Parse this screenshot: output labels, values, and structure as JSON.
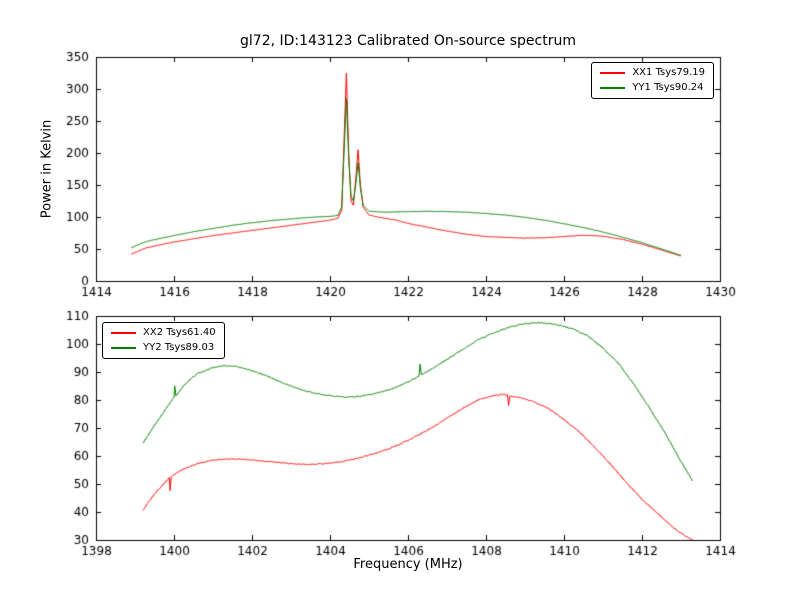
{
  "figure": {
    "title": "gl72, ID:143123 Calibrated On-source spectrum",
    "xlabel": "Frequency (MHz)",
    "ylabel": "Power in Kelvin"
  },
  "chart_data": [
    {
      "type": "line",
      "title": "gl72, ID:143123 Calibrated On-source spectrum",
      "ylabel": "Power in Kelvin",
      "xlim": [
        1414,
        1430
      ],
      "ylim": [
        0,
        350
      ],
      "xticks": [
        1414,
        1416,
        1418,
        1420,
        1422,
        1424,
        1426,
        1428,
        1430
      ],
      "yticks": [
        0,
        50,
        100,
        150,
        200,
        250,
        300,
        350
      ],
      "grid": false,
      "legend_position": "upper right",
      "noise": 0.6,
      "series": [
        {
          "name": "XX1 Tsys79.19",
          "color": "#ff0000",
          "points": [
            [
              1414.9,
              42
            ],
            [
              1415.3,
              52
            ],
            [
              1416,
              61
            ],
            [
              1416.5,
              66
            ],
            [
              1417,
              71
            ],
            [
              1417.5,
              75
            ],
            [
              1418,
              79
            ],
            [
              1418.5,
              83
            ],
            [
              1419,
              87
            ],
            [
              1419.5,
              91
            ],
            [
              1420.0,
              95
            ],
            [
              1420.2,
              98
            ],
            [
              1420.3,
              110
            ],
            [
              1420.36,
              220
            ],
            [
              1420.42,
              325
            ],
            [
              1420.48,
              200
            ],
            [
              1420.54,
              125
            ],
            [
              1420.6,
              118
            ],
            [
              1420.66,
              160
            ],
            [
              1420.72,
              205
            ],
            [
              1420.78,
              150
            ],
            [
              1420.85,
              115
            ],
            [
              1421,
              103
            ],
            [
              1421.3,
              99
            ],
            [
              1421.7,
              95
            ],
            [
              1422,
              90
            ],
            [
              1422.5,
              84
            ],
            [
              1423,
              78
            ],
            [
              1423.5,
              73
            ],
            [
              1424,
              69.5
            ],
            [
              1424.5,
              68
            ],
            [
              1425,
              67
            ],
            [
              1425.5,
              67.5
            ],
            [
              1426,
              69.5
            ],
            [
              1426.5,
              71.5
            ],
            [
              1427,
              70
            ],
            [
              1427.5,
              65
            ],
            [
              1428,
              57.5
            ],
            [
              1428.5,
              48.5
            ],
            [
              1429,
              39
            ]
          ]
        },
        {
          "name": "YY1 Tsys90.24",
          "color": "#008000",
          "points": [
            [
              1414.9,
              52
            ],
            [
              1415.3,
              62
            ],
            [
              1416,
              71
            ],
            [
              1416.5,
              77
            ],
            [
              1417,
              82
            ],
            [
              1417.5,
              87
            ],
            [
              1418,
              91
            ],
            [
              1418.5,
              94.5
            ],
            [
              1419,
              97
            ],
            [
              1419.5,
              99.5
            ],
            [
              1420.0,
              101
            ],
            [
              1420.2,
              102.5
            ],
            [
              1420.3,
              115
            ],
            [
              1420.36,
              200
            ],
            [
              1420.42,
              285
            ],
            [
              1420.48,
              190
            ],
            [
              1420.54,
              132
            ],
            [
              1420.6,
              125
            ],
            [
              1420.66,
              150
            ],
            [
              1420.72,
              185
            ],
            [
              1420.78,
              145
            ],
            [
              1420.85,
              118
            ],
            [
              1421,
              109
            ],
            [
              1421.4,
              107.5
            ],
            [
              1422,
              108.5
            ],
            [
              1422.5,
              109
            ],
            [
              1423,
              108.5
            ],
            [
              1423.5,
              107.5
            ],
            [
              1424,
              105.5
            ],
            [
              1424.5,
              103
            ],
            [
              1425,
              99.5
            ],
            [
              1425.5,
              95
            ],
            [
              1426,
              89.5
            ],
            [
              1426.5,
              83.5
            ],
            [
              1427,
              76.5
            ],
            [
              1427.5,
              68.5
            ],
            [
              1428,
              60
            ],
            [
              1428.5,
              50
            ],
            [
              1429,
              40
            ]
          ]
        }
      ]
    },
    {
      "type": "line",
      "xlabel": "Frequency (MHz)",
      "xlim": [
        1398,
        1414
      ],
      "ylim": [
        30,
        110
      ],
      "xticks": [
        1398,
        1400,
        1402,
        1404,
        1406,
        1408,
        1410,
        1412,
        1414
      ],
      "yticks": [
        30,
        40,
        50,
        60,
        70,
        80,
        90,
        100,
        110
      ],
      "grid": false,
      "legend_position": "upper left",
      "noise": 0.4,
      "series": [
        {
          "name": "XX2 Tsys61.40",
          "color": "#ff0000",
          "points": [
            [
              1399.2,
              40.5
            ],
            [
              1399.5,
              46.5
            ],
            [
              1399.8,
              51
            ],
            [
              1399.88,
              52.3
            ],
            [
              1399.9,
              47.5
            ],
            [
              1399.93,
              52.7
            ],
            [
              1400.2,
              55
            ],
            [
              1400.6,
              57.3
            ],
            [
              1401.0,
              58.5
            ],
            [
              1401.4,
              59
            ],
            [
              1401.8,
              58.8
            ],
            [
              1402.2,
              58.3
            ],
            [
              1402.6,
              57.8
            ],
            [
              1403.0,
              57.3
            ],
            [
              1403.4,
              57
            ],
            [
              1403.8,
              57.2
            ],
            [
              1404.2,
              57.8
            ],
            [
              1404.6,
              58.8
            ],
            [
              1405.0,
              60.3
            ],
            [
              1405.4,
              62
            ],
            [
              1405.8,
              64.3
            ],
            [
              1406.2,
              67
            ],
            [
              1406.6,
              70
            ],
            [
              1407.0,
              73.5
            ],
            [
              1407.4,
              77
            ],
            [
              1407.8,
              80
            ],
            [
              1408.1,
              81.3
            ],
            [
              1408.4,
              82
            ],
            [
              1408.55,
              81.8
            ],
            [
              1408.58,
              78
            ],
            [
              1408.61,
              81.5
            ],
            [
              1408.9,
              80.8
            ],
            [
              1409.2,
              79.5
            ],
            [
              1409.6,
              77
            ],
            [
              1410.0,
              73
            ],
            [
              1410.4,
              68.5
            ],
            [
              1410.8,
              63
            ],
            [
              1411.2,
              57
            ],
            [
              1411.6,
              50.5
            ],
            [
              1412.0,
              44.5
            ],
            [
              1412.4,
              39.5
            ],
            [
              1412.8,
              34.5
            ],
            [
              1413.1,
              31.5
            ],
            [
              1413.3,
              30
            ]
          ]
        },
        {
          "name": "YY2 Tsys89.03",
          "color": "#008000",
          "points": [
            [
              1399.2,
              64.5
            ],
            [
              1399.5,
              71
            ],
            [
              1399.8,
              77
            ],
            [
              1400.0,
              81
            ],
            [
              1400.02,
              85
            ],
            [
              1400.05,
              81.5
            ],
            [
              1400.3,
              86
            ],
            [
              1400.6,
              89.5
            ],
            [
              1401.0,
              91.5
            ],
            [
              1401.3,
              92.3
            ],
            [
              1401.6,
              92
            ],
            [
              1402.0,
              90.5
            ],
            [
              1402.4,
              88.5
            ],
            [
              1402.8,
              86
            ],
            [
              1403.2,
              84
            ],
            [
              1403.6,
              82.5
            ],
            [
              1404.0,
              81.5
            ],
            [
              1404.4,
              81
            ],
            [
              1404.8,
              81.3
            ],
            [
              1405.2,
              82.5
            ],
            [
              1405.6,
              84
            ],
            [
              1406.0,
              86.5
            ],
            [
              1406.28,
              88.5
            ],
            [
              1406.31,
              93
            ],
            [
              1406.34,
              89
            ],
            [
              1406.6,
              91
            ],
            [
              1407.0,
              94.5
            ],
            [
              1407.4,
              98
            ],
            [
              1407.8,
              101.5
            ],
            [
              1408.2,
              104
            ],
            [
              1408.6,
              106
            ],
            [
              1409.0,
              107.3
            ],
            [
              1409.4,
              107.6
            ],
            [
              1409.8,
              107
            ],
            [
              1410.2,
              105.5
            ],
            [
              1410.6,
              103
            ],
            [
              1411.0,
              98.5
            ],
            [
              1411.4,
              93
            ],
            [
              1411.8,
              85.5
            ],
            [
              1412.2,
              77
            ],
            [
              1412.6,
              68
            ],
            [
              1413.0,
              58
            ],
            [
              1413.3,
              51
            ]
          ]
        }
      ]
    }
  ]
}
